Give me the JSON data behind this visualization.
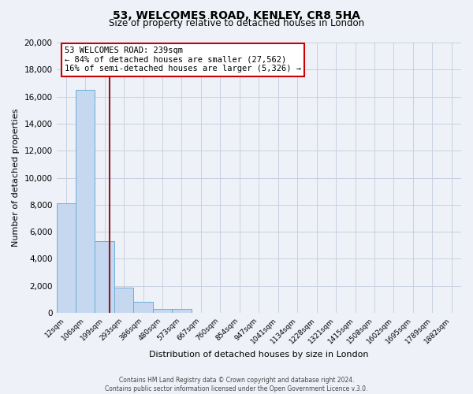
{
  "title": "53, WELCOMES ROAD, KENLEY, CR8 5HA",
  "subtitle": "Size of property relative to detached houses in London",
  "xlabel": "Distribution of detached houses by size in London",
  "ylabel": "Number of detached properties",
  "bar_labels": [
    "12sqm",
    "106sqm",
    "199sqm",
    "293sqm",
    "386sqm",
    "480sqm",
    "573sqm",
    "667sqm",
    "760sqm",
    "854sqm",
    "947sqm",
    "1041sqm",
    "1134sqm",
    "1228sqm",
    "1321sqm",
    "1415sqm",
    "1508sqm",
    "1602sqm",
    "1695sqm",
    "1789sqm",
    "1882sqm"
  ],
  "bar_values": [
    8100,
    16500,
    5300,
    1850,
    800,
    300,
    300,
    0,
    0,
    0,
    0,
    0,
    0,
    0,
    0,
    0,
    0,
    0,
    0,
    0,
    0
  ],
  "bar_color": "#c5d8f0",
  "bar_edge_color": "#6baed6",
  "property_line_x": 2.27,
  "property_line_color": "#8b1a1a",
  "annotation_title": "53 WELCOMES ROAD: 239sqm",
  "annotation_line1": "← 84% of detached houses are smaller (27,562)",
  "annotation_line2": "16% of semi-detached houses are larger (5,326) →",
  "annotation_box_color": "#ffffff",
  "annotation_box_edge_color": "#cc0000",
  "ylim": [
    0,
    20000
  ],
  "yticks": [
    0,
    2000,
    4000,
    6000,
    8000,
    10000,
    12000,
    14000,
    16000,
    18000,
    20000
  ],
  "footer1": "Contains HM Land Registry data © Crown copyright and database right 2024.",
  "footer2": "Contains public sector information licensed under the Open Government Licence v.3.0.",
  "background_color": "#eef2f8",
  "plot_bg_color": "#eef2f8",
  "grid_color": "#c8d0e0"
}
